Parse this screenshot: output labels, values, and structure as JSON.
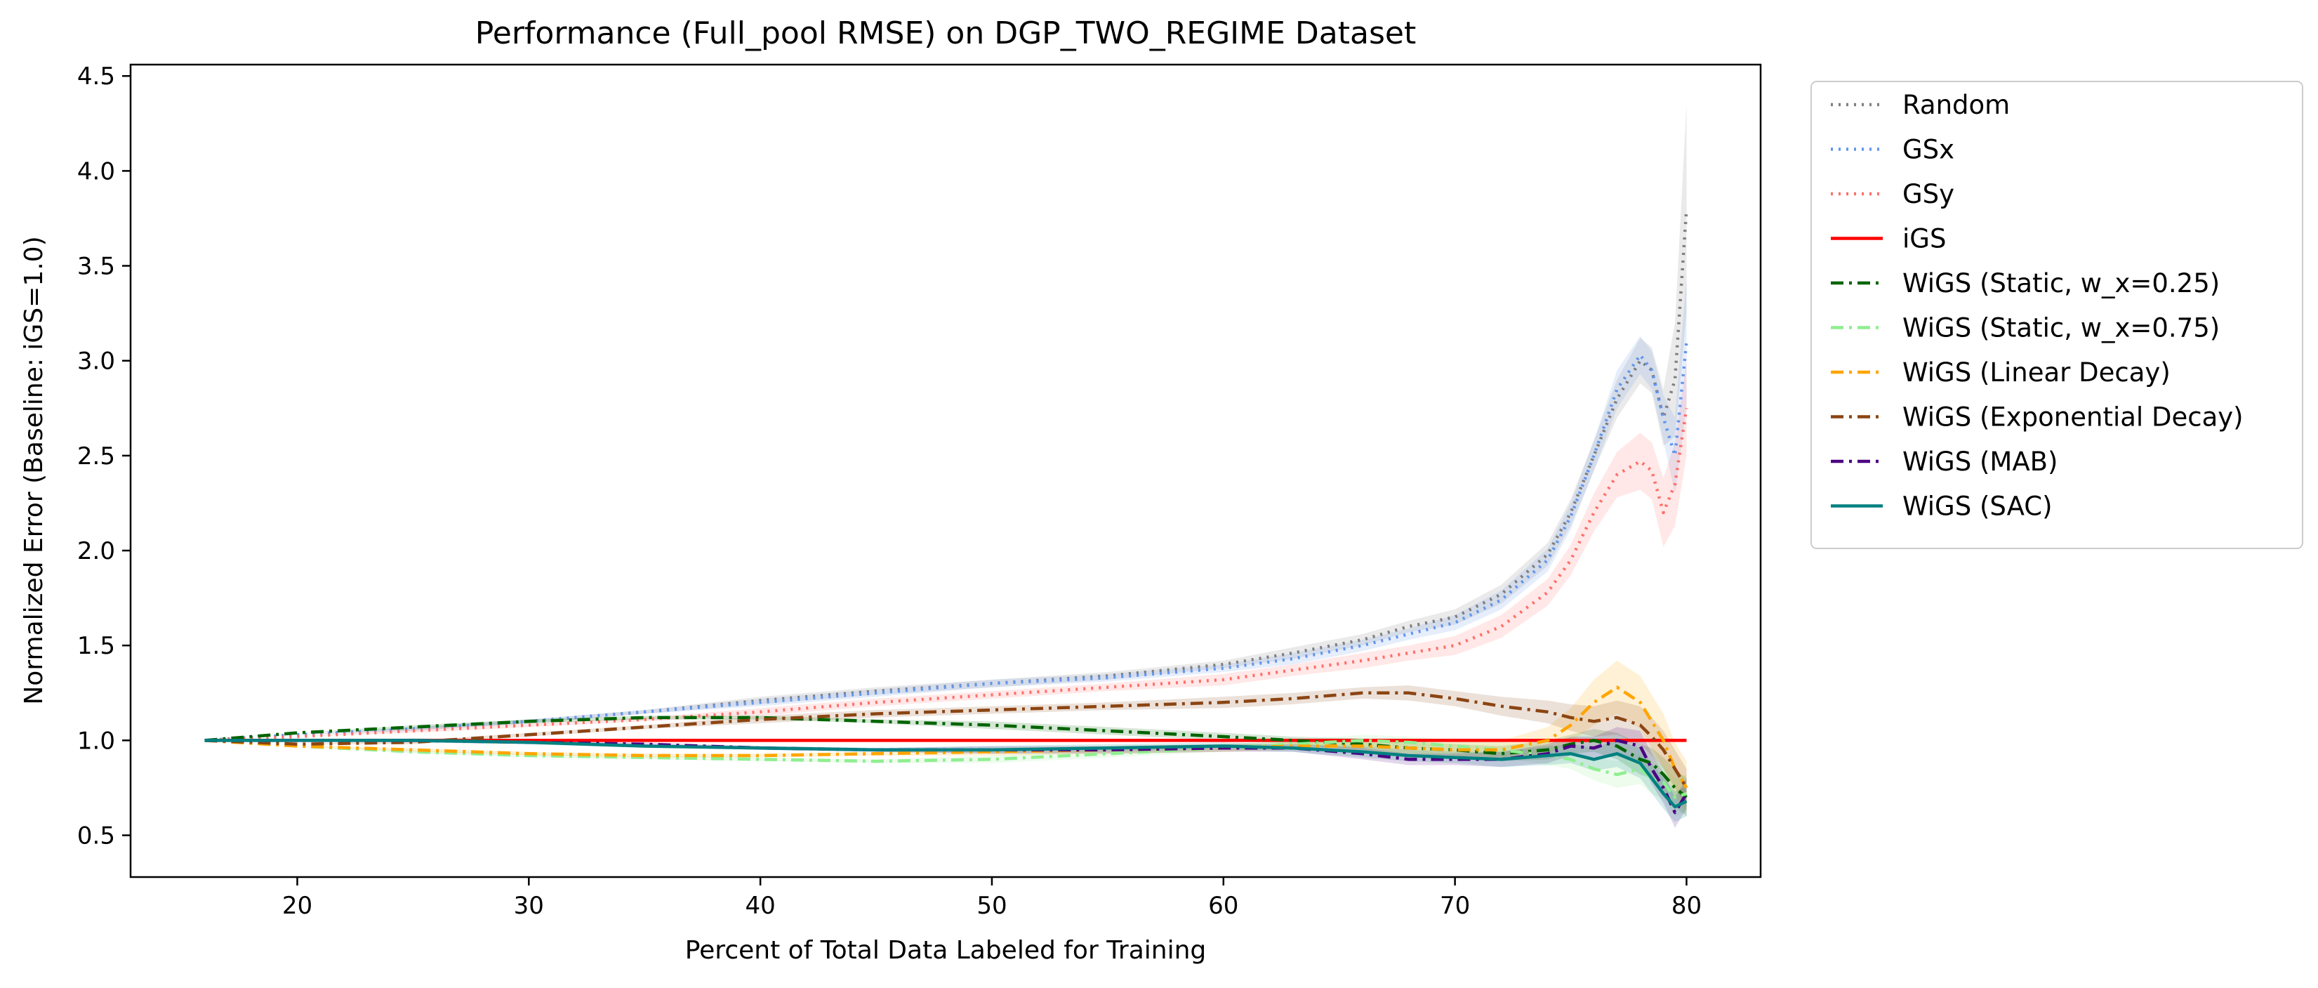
{
  "chart_data": {
    "type": "line",
    "title": "Performance (Full_pool RMSE) on DGP_TWO_REGIME Dataset",
    "xlabel": "Percent of Total Data Labeled for Training",
    "ylabel": "Normalized Error (Baseline: iGS=1.0)",
    "xlim": [
      12.8,
      83.2
    ],
    "ylim": [
      0.28,
      4.56
    ],
    "x_ticks": [
      20,
      30,
      40,
      50,
      60,
      70,
      80
    ],
    "x_tick_labels": [
      "20",
      "30",
      "40",
      "50",
      "60",
      "70",
      "80"
    ],
    "y_ticks": [
      0.5,
      1.0,
      1.5,
      2.0,
      2.5,
      3.0,
      3.5,
      4.0,
      4.5
    ],
    "y_tick_labels": [
      "0.5",
      "1.0",
      "1.5",
      "2.0",
      "2.5",
      "3.0",
      "3.5",
      "4.0",
      "4.5"
    ],
    "grid": false,
    "legend_placement": "outside-right-top",
    "series": [
      {
        "name": "Random",
        "color": "#7f7f7f",
        "dash": "dotted",
        "x": [
          16,
          20,
          25,
          30,
          35,
          40,
          45,
          50,
          55,
          60,
          63,
          66,
          68,
          70,
          72,
          74,
          75,
          76,
          77,
          78,
          78.5,
          79,
          79.5,
          80
        ],
        "y": [
          1.0,
          1.03,
          1.06,
          1.1,
          1.15,
          1.21,
          1.26,
          1.3,
          1.34,
          1.4,
          1.46,
          1.53,
          1.6,
          1.65,
          1.77,
          1.98,
          2.2,
          2.5,
          2.8,
          3.0,
          2.95,
          2.7,
          2.9,
          3.8
        ],
        "band": [
          0,
          0,
          0.01,
          0.01,
          0.01,
          0.02,
          0.02,
          0.02,
          0.02,
          0.02,
          0.03,
          0.03,
          0.03,
          0.04,
          0.05,
          0.06,
          0.07,
          0.08,
          0.1,
          0.12,
          0.12,
          0.15,
          0.3,
          0.55
        ]
      },
      {
        "name": "GSx",
        "color": "#6495ed",
        "dash": "dotted",
        "x": [
          16,
          20,
          25,
          30,
          35,
          40,
          45,
          50,
          55,
          60,
          63,
          66,
          68,
          70,
          72,
          74,
          75,
          76,
          77,
          78,
          78.5,
          79,
          79.5,
          80
        ],
        "y": [
          1.0,
          1.03,
          1.06,
          1.1,
          1.15,
          1.2,
          1.25,
          1.3,
          1.33,
          1.38,
          1.43,
          1.5,
          1.56,
          1.62,
          1.74,
          1.95,
          2.18,
          2.5,
          2.85,
          3.03,
          2.95,
          2.7,
          2.5,
          3.1
        ],
        "band": [
          0,
          0,
          0.01,
          0.01,
          0.01,
          0.02,
          0.02,
          0.02,
          0.02,
          0.02,
          0.03,
          0.03,
          0.03,
          0.04,
          0.05,
          0.06,
          0.07,
          0.08,
          0.1,
          0.1,
          0.1,
          0.12,
          0.2,
          0.35
        ]
      },
      {
        "name": "GSy",
        "color": "#ff6f69",
        "dash": "dotted",
        "x": [
          16,
          20,
          25,
          30,
          35,
          40,
          45,
          50,
          55,
          60,
          63,
          66,
          68,
          70,
          72,
          74,
          75,
          76,
          77,
          78,
          78.5,
          79,
          79.5,
          80
        ],
        "y": [
          1.0,
          1.02,
          1.05,
          1.08,
          1.11,
          1.15,
          1.2,
          1.24,
          1.28,
          1.32,
          1.37,
          1.42,
          1.46,
          1.5,
          1.6,
          1.78,
          1.95,
          2.2,
          2.4,
          2.47,
          2.42,
          2.2,
          2.35,
          2.75
        ],
        "band": [
          0,
          0,
          0.01,
          0.01,
          0.01,
          0.02,
          0.02,
          0.02,
          0.02,
          0.03,
          0.03,
          0.04,
          0.04,
          0.05,
          0.06,
          0.07,
          0.08,
          0.1,
          0.12,
          0.15,
          0.15,
          0.18,
          0.22,
          0.25
        ]
      },
      {
        "name": "iGS",
        "color": "#ff0000",
        "dash": "solid",
        "x": [
          16,
          80
        ],
        "y": [
          1.0,
          1.0
        ],
        "band": [
          0,
          0
        ]
      },
      {
        "name": "WiGS (Static, w_x=0.25)",
        "color": "#006400",
        "dash": "dashdot",
        "x": [
          16,
          20,
          25,
          30,
          35,
          40,
          45,
          50,
          55,
          60,
          63,
          66,
          68,
          70,
          72,
          74,
          75,
          76,
          77,
          78,
          78.5,
          79,
          79.5,
          80
        ],
        "y": [
          1.0,
          1.04,
          1.07,
          1.1,
          1.12,
          1.12,
          1.1,
          1.08,
          1.05,
          1.02,
          1.0,
          0.98,
          0.96,
          0.95,
          0.93,
          0.95,
          0.98,
          1.0,
          0.97,
          0.9,
          0.88,
          0.82,
          0.75,
          0.7
        ],
        "band": [
          0,
          0,
          0.01,
          0.01,
          0.01,
          0.01,
          0.01,
          0.02,
          0.02,
          0.02,
          0.02,
          0.03,
          0.03,
          0.03,
          0.04,
          0.05,
          0.05,
          0.06,
          0.07,
          0.08,
          0.08,
          0.09,
          0.1,
          0.1
        ]
      },
      {
        "name": "WiGS (Static, w_x=0.75)",
        "color": "#90ee90",
        "dash": "dashdot",
        "x": [
          16,
          20,
          25,
          30,
          35,
          40,
          45,
          50,
          55,
          60,
          63,
          66,
          68,
          70,
          72,
          74,
          75,
          76,
          77,
          78,
          78.5,
          79,
          79.5,
          80
        ],
        "y": [
          1.0,
          0.97,
          0.94,
          0.92,
          0.91,
          0.9,
          0.89,
          0.9,
          0.93,
          0.96,
          0.98,
          1.0,
          0.99,
          0.97,
          0.95,
          0.92,
          0.9,
          0.85,
          0.82,
          0.85,
          0.8,
          0.78,
          0.7,
          0.72
        ],
        "band": [
          0,
          0,
          0.01,
          0.01,
          0.01,
          0.01,
          0.01,
          0.02,
          0.02,
          0.02,
          0.02,
          0.03,
          0.03,
          0.03,
          0.04,
          0.05,
          0.05,
          0.06,
          0.07,
          0.08,
          0.08,
          0.09,
          0.1,
          0.1
        ]
      },
      {
        "name": "WiGS (Linear Decay)",
        "color": "#ffa500",
        "dash": "dashdot",
        "x": [
          16,
          20,
          25,
          30,
          35,
          40,
          45,
          50,
          55,
          60,
          63,
          66,
          68,
          70,
          72,
          74,
          75,
          76,
          77,
          78,
          78.5,
          79,
          79.5,
          80
        ],
        "y": [
          1.0,
          0.97,
          0.95,
          0.93,
          0.92,
          0.92,
          0.93,
          0.94,
          0.95,
          0.96,
          0.97,
          0.97,
          0.96,
          0.95,
          0.95,
          1.0,
          1.08,
          1.2,
          1.28,
          1.2,
          1.1,
          1.0,
          0.85,
          0.75
        ],
        "band": [
          0,
          0,
          0.01,
          0.01,
          0.01,
          0.01,
          0.01,
          0.02,
          0.02,
          0.02,
          0.02,
          0.03,
          0.03,
          0.04,
          0.05,
          0.07,
          0.09,
          0.12,
          0.14,
          0.14,
          0.14,
          0.14,
          0.14,
          0.14
        ]
      },
      {
        "name": "WiGS (Exponential Decay)",
        "color": "#8b4513",
        "dash": "dashdot",
        "x": [
          16,
          20,
          25,
          30,
          35,
          40,
          45,
          50,
          55,
          60,
          63,
          66,
          68,
          70,
          72,
          74,
          75,
          76,
          77,
          78,
          78.5,
          79,
          79.5,
          80
        ],
        "y": [
          1.0,
          0.98,
          0.99,
          1.03,
          1.07,
          1.11,
          1.14,
          1.16,
          1.18,
          1.2,
          1.22,
          1.25,
          1.25,
          1.22,
          1.18,
          1.15,
          1.12,
          1.1,
          1.12,
          1.08,
          1.02,
          0.95,
          0.85,
          0.75
        ],
        "band": [
          0,
          0,
          0.01,
          0.01,
          0.01,
          0.02,
          0.02,
          0.02,
          0.02,
          0.03,
          0.03,
          0.03,
          0.04,
          0.04,
          0.05,
          0.06,
          0.07,
          0.08,
          0.09,
          0.1,
          0.1,
          0.1,
          0.1,
          0.1
        ]
      },
      {
        "name": "WiGS (MAB)",
        "color": "#4b0082",
        "dash": "dashdot",
        "x": [
          16,
          20,
          25,
          30,
          35,
          40,
          45,
          50,
          55,
          60,
          63,
          66,
          68,
          70,
          72,
          74,
          75,
          76,
          77,
          78,
          78.5,
          79,
          79.5,
          80
        ],
        "y": [
          1.0,
          1.0,
          1.0,
          0.99,
          0.98,
          0.96,
          0.95,
          0.95,
          0.95,
          0.96,
          0.96,
          0.93,
          0.9,
          0.9,
          0.9,
          0.93,
          0.97,
          0.96,
          1.0,
          0.97,
          0.85,
          0.75,
          0.62,
          0.72
        ],
        "band": [
          0,
          0,
          0.01,
          0.01,
          0.01,
          0.01,
          0.01,
          0.02,
          0.02,
          0.02,
          0.02,
          0.03,
          0.03,
          0.03,
          0.04,
          0.05,
          0.05,
          0.06,
          0.07,
          0.08,
          0.08,
          0.08,
          0.08,
          0.08
        ]
      },
      {
        "name": "WiGS (SAC)",
        "color": "#008080",
        "dash": "solid",
        "x": [
          16,
          20,
          25,
          30,
          35,
          40,
          45,
          50,
          55,
          60,
          63,
          66,
          68,
          70,
          72,
          74,
          75,
          76,
          77,
          78,
          78.5,
          79,
          79.5,
          80
        ],
        "y": [
          1.0,
          1.0,
          1.0,
          0.99,
          0.97,
          0.96,
          0.95,
          0.95,
          0.96,
          0.97,
          0.96,
          0.94,
          0.92,
          0.91,
          0.9,
          0.92,
          0.93,
          0.9,
          0.93,
          0.88,
          0.8,
          0.72,
          0.65,
          0.68
        ],
        "band": [
          0,
          0,
          0.01,
          0.01,
          0.01,
          0.01,
          0.01,
          0.02,
          0.02,
          0.02,
          0.02,
          0.03,
          0.03,
          0.03,
          0.04,
          0.05,
          0.05,
          0.06,
          0.07,
          0.08,
          0.08,
          0.08,
          0.08,
          0.08
        ]
      }
    ]
  }
}
